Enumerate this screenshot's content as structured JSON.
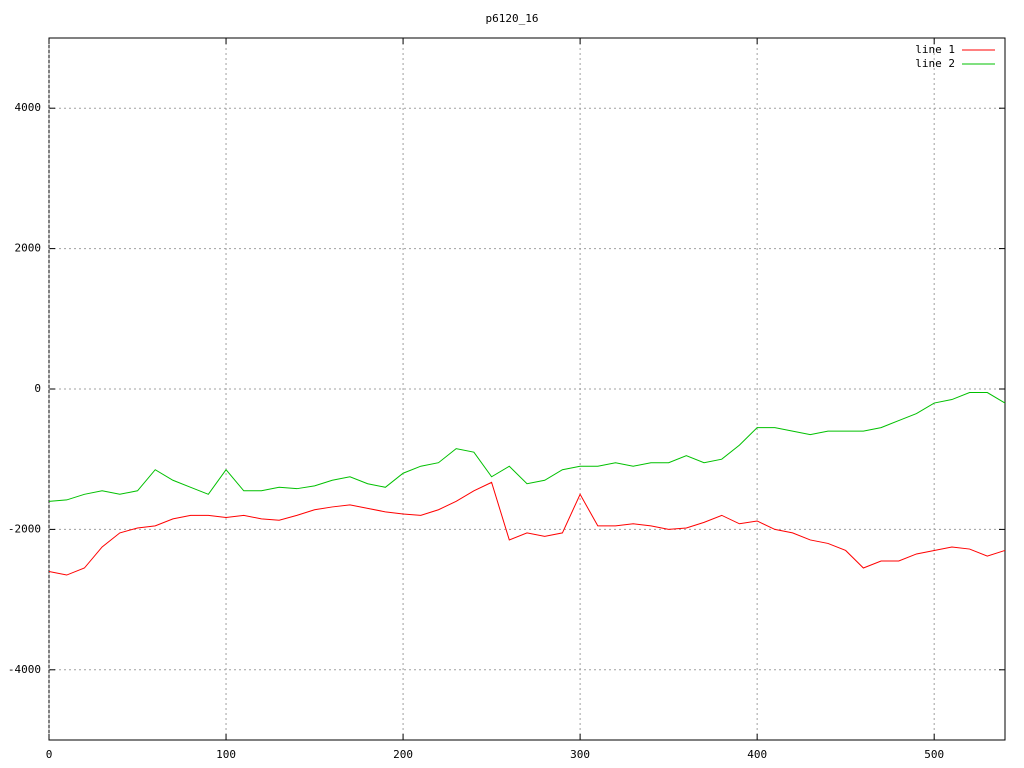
{
  "chart_data": {
    "type": "line",
    "title": "p6120_16",
    "x": [
      0,
      10,
      20,
      30,
      40,
      50,
      60,
      70,
      80,
      90,
      100,
      110,
      120,
      130,
      140,
      150,
      160,
      170,
      180,
      190,
      200,
      210,
      220,
      230,
      240,
      250,
      260,
      270,
      280,
      290,
      300,
      310,
      320,
      330,
      340,
      350,
      360,
      370,
      380,
      390,
      400,
      410,
      420,
      430,
      440,
      450,
      460,
      470,
      480,
      490,
      500,
      510,
      520,
      530,
      540
    ],
    "series": [
      {
        "name": "line 1",
        "color": "#ff0000",
        "values": [
          -2600,
          -2650,
          -2550,
          -2250,
          -2050,
          -1980,
          -1950,
          -1850,
          -1800,
          -1800,
          -1830,
          -1800,
          -1850,
          -1870,
          -1800,
          -1720,
          -1680,
          -1650,
          -1700,
          -1750,
          -1780,
          -1800,
          -1720,
          -1600,
          -1450,
          -1330,
          -2150,
          -2050,
          -2100,
          -2050,
          -1500,
          -1950,
          -1950,
          -1920,
          -1950,
          -2000,
          -1980,
          -1900,
          -1800,
          -1920,
          -1880,
          -2000,
          -2050,
          -2150,
          -2200,
          -2300,
          -2550,
          -2450,
          -2450,
          -2350,
          -2300,
          -2250,
          -2280,
          -2380,
          -2300
        ]
      },
      {
        "name": "line 2",
        "color": "#00c000",
        "values": [
          -1600,
          -1580,
          -1500,
          -1450,
          -1500,
          -1450,
          -1150,
          -1300,
          -1400,
          -1500,
          -1150,
          -1450,
          -1450,
          -1400,
          -1420,
          -1380,
          -1300,
          -1250,
          -1350,
          -1400,
          -1200,
          -1100,
          -1050,
          -850,
          -900,
          -1250,
          -1100,
          -1350,
          -1300,
          -1150,
          -1100,
          -1100,
          -1050,
          -1100,
          -1050,
          -1050,
          -950,
          -1050,
          -1000,
          -800,
          -550,
          -550,
          -600,
          -650,
          -600,
          -600,
          -600,
          -550,
          -450,
          -350,
          -200,
          -150,
          -50,
          -50,
          -200
        ]
      }
    ],
    "xlim": [
      0,
      540
    ],
    "ylim": [
      -5000,
      5000
    ],
    "xticks": [
      0,
      100,
      200,
      300,
      400,
      500
    ],
    "yticks": [
      -4000,
      -2000,
      0,
      2000,
      4000
    ],
    "grid": true,
    "legend": "top-right"
  }
}
